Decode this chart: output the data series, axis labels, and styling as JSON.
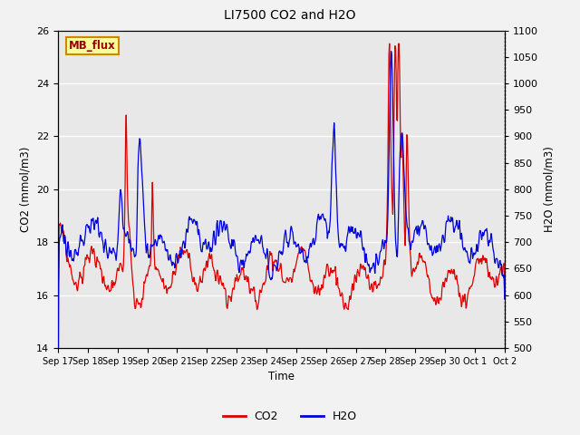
{
  "title": "LI7500 CO2 and H2O",
  "xlabel": "Time",
  "ylabel_left": "CO2 (mmol/m3)",
  "ylabel_right": "H2O (mmol/m3)",
  "ylim_left": [
    14,
    26
  ],
  "ylim_right": [
    500,
    1100
  ],
  "yticks_left": [
    14,
    16,
    18,
    20,
    22,
    24,
    26
  ],
  "yticks_right": [
    500,
    550,
    600,
    650,
    700,
    750,
    800,
    850,
    900,
    950,
    1000,
    1050,
    1100
  ],
  "xtick_labels": [
    "Sep 17",
    "Sep 18",
    "Sep 19",
    "Sep 20",
    "Sep 21",
    "Sep 22",
    "Sep 23",
    "Sep 24",
    "Sep 25",
    "Sep 26",
    "Sep 27",
    "Sep 28",
    "Sep 29",
    "Sep 30",
    "Oct 1",
    "Oct 2"
  ],
  "co2_color": "#dd0000",
  "h2o_color": "#0000dd",
  "plot_bg_color": "#e8e8e8",
  "grid_color": "#ffffff",
  "fig_bg_color": "#f2f2f2",
  "annotation_text": "MB_flux",
  "annotation_bg": "#ffff99",
  "annotation_border": "#cc8800",
  "annotation_text_color": "#990000",
  "legend_co2": "CO2",
  "legend_h2o": "H2O",
  "linewidth": 0.9
}
